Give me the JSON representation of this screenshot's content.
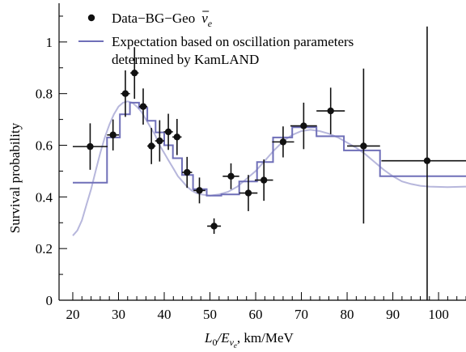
{
  "chart_data": {
    "type": "scatter",
    "xlabel_main": "L",
    "xlabel_sub0": "0",
    "xlabel_slash": "/E",
    "xlabel_sub_nu": "ν",
    "xlabel_sub_e": "e",
    "xlabel_rest": ", km/MeV",
    "ylabel": "Survival probability",
    "xlim": [
      17,
      106
    ],
    "ylim": [
      0,
      1.15
    ],
    "x_ticks": [
      20,
      30,
      40,
      50,
      60,
      70,
      80,
      90,
      100
    ],
    "x_tick_labels": [
      "20",
      "30",
      "40",
      "50",
      "60",
      "70",
      "80",
      "90",
      "100"
    ],
    "y_ticks": [
      0,
      0.2,
      0.4,
      0.6,
      0.8,
      1
    ],
    "y_tick_labels": [
      "0",
      "0.2",
      "0.4",
      "0.6",
      "0.8",
      "1"
    ],
    "legend": {
      "position": "top-left",
      "data_label_prefix": "Data−BG−Geo",
      "data_label_nu": "ν",
      "data_label_sub": "e",
      "expectation_line1": "Expectation based on oscillation parameters",
      "expectation_line2": "determined by KamLAND"
    },
    "colors": {
      "data": "#111111",
      "expectation": "#6f6fb8",
      "smooth": "#b7b7dc"
    },
    "data_points": [
      {
        "x": 23.8,
        "y": 0.595,
        "xerr_lo": 3.8,
        "xerr_hi": 3.8,
        "yerr_lo": 0.09,
        "yerr_hi": 0.09
      },
      {
        "x": 28.8,
        "y": 0.64,
        "xerr_lo": 1.3,
        "xerr_hi": 1.3,
        "yerr_lo": 0.06,
        "yerr_hi": 0.06
      },
      {
        "x": 31.5,
        "y": 0.8,
        "xerr_lo": 1.0,
        "xerr_hi": 1.0,
        "yerr_lo": 0.09,
        "yerr_hi": 0.09
      },
      {
        "x": 33.5,
        "y": 0.88,
        "xerr_lo": 0.9,
        "xerr_hi": 0.9,
        "yerr_lo": 0.1,
        "yerr_hi": 0.1
      },
      {
        "x": 35.4,
        "y": 0.75,
        "xerr_lo": 0.9,
        "xerr_hi": 0.9,
        "yerr_lo": 0.07,
        "yerr_hi": 0.07
      },
      {
        "x": 37.2,
        "y": 0.597,
        "xerr_lo": 0.9,
        "xerr_hi": 0.9,
        "yerr_lo": 0.07,
        "yerr_hi": 0.07
      },
      {
        "x": 39.0,
        "y": 0.617,
        "xerr_lo": 1.0,
        "xerr_hi": 1.0,
        "yerr_lo": 0.08,
        "yerr_hi": 0.08
      },
      {
        "x": 40.9,
        "y": 0.652,
        "xerr_lo": 1.0,
        "xerr_hi": 1.0,
        "yerr_lo": 0.07,
        "yerr_hi": 0.07
      },
      {
        "x": 42.8,
        "y": 0.632,
        "xerr_lo": 1.0,
        "xerr_hi": 1.0,
        "yerr_lo": 0.07,
        "yerr_hi": 0.07
      },
      {
        "x": 45.0,
        "y": 0.495,
        "xerr_lo": 1.1,
        "xerr_hi": 1.1,
        "yerr_lo": 0.06,
        "yerr_hi": 0.06
      },
      {
        "x": 47.7,
        "y": 0.425,
        "xerr_lo": 1.3,
        "xerr_hi": 1.3,
        "yerr_lo": 0.05,
        "yerr_hi": 0.05
      },
      {
        "x": 50.9,
        "y": 0.287,
        "xerr_lo": 1.5,
        "xerr_hi": 1.5,
        "yerr_lo": 0.03,
        "yerr_hi": 0.03
      },
      {
        "x": 54.6,
        "y": 0.48,
        "xerr_lo": 1.8,
        "xerr_hi": 1.8,
        "yerr_lo": 0.05,
        "yerr_hi": 0.05
      },
      {
        "x": 58.4,
        "y": 0.415,
        "xerr_lo": 2.0,
        "xerr_hi": 2.0,
        "yerr_lo": 0.07,
        "yerr_hi": 0.07
      },
      {
        "x": 61.8,
        "y": 0.465,
        "xerr_lo": 2.0,
        "xerr_hi": 2.0,
        "yerr_lo": 0.08,
        "yerr_hi": 0.08
      },
      {
        "x": 66.0,
        "y": 0.613,
        "xerr_lo": 2.4,
        "xerr_hi": 2.4,
        "yerr_lo": 0.06,
        "yerr_hi": 0.06
      },
      {
        "x": 70.5,
        "y": 0.675,
        "xerr_lo": 2.9,
        "xerr_hi": 2.9,
        "yerr_lo": 0.09,
        "yerr_hi": 0.09
      },
      {
        "x": 76.4,
        "y": 0.733,
        "xerr_lo": 3.1,
        "xerr_hi": 3.1,
        "yerr_lo": 0.09,
        "yerr_hi": 0.09
      },
      {
        "x": 83.6,
        "y": 0.597,
        "xerr_lo": 3.6,
        "xerr_hi": 3.6,
        "yerr_lo": 0.3,
        "yerr_hi": 0.3
      },
      {
        "x": 97.5,
        "y": 0.54,
        "xerr_lo": 10.0,
        "xerr_hi": 9.0,
        "yerr_lo": 0.54,
        "yerr_hi": 0.52
      }
    ],
    "expectation_histogram": [
      {
        "x0": 20,
        "x1": 27.5,
        "y": 0.455
      },
      {
        "x0": 27.5,
        "x1": 30.3,
        "y": 0.63
      },
      {
        "x0": 30.3,
        "x1": 32.5,
        "y": 0.72
      },
      {
        "x0": 32.5,
        "x1": 34.5,
        "y": 0.765
      },
      {
        "x0": 34.5,
        "x1": 36.3,
        "y": 0.745
      },
      {
        "x0": 36.3,
        "x1": 38.1,
        "y": 0.695
      },
      {
        "x0": 38.1,
        "x1": 40.0,
        "y": 0.65
      },
      {
        "x0": 40.0,
        "x1": 41.9,
        "y": 0.6
      },
      {
        "x0": 41.9,
        "x1": 43.9,
        "y": 0.55
      },
      {
        "x0": 43.9,
        "x1": 46.3,
        "y": 0.485
      },
      {
        "x0": 46.3,
        "x1": 49.3,
        "y": 0.43
      },
      {
        "x0": 49.3,
        "x1": 52.5,
        "y": 0.405
      },
      {
        "x0": 52.5,
        "x1": 56.4,
        "y": 0.41
      },
      {
        "x0": 56.4,
        "x1": 60.3,
        "y": 0.46
      },
      {
        "x0": 60.3,
        "x1": 63.8,
        "y": 0.535
      },
      {
        "x0": 63.8,
        "x1": 68.0,
        "y": 0.63
      },
      {
        "x0": 68.0,
        "x1": 73.3,
        "y": 0.67
      },
      {
        "x0": 73.3,
        "x1": 79.3,
        "y": 0.635
      },
      {
        "x0": 79.3,
        "x1": 87.2,
        "y": 0.58
      },
      {
        "x0": 87.2,
        "x1": 106,
        "y": 0.48
      }
    ],
    "expectation_smooth": [
      [
        20,
        0.25
      ],
      [
        21,
        0.27
      ],
      [
        22,
        0.31
      ],
      [
        23,
        0.37
      ],
      [
        24,
        0.43
      ],
      [
        25,
        0.5
      ],
      [
        26,
        0.57
      ],
      [
        27,
        0.63
      ],
      [
        28,
        0.68
      ],
      [
        29,
        0.72
      ],
      [
        30,
        0.75
      ],
      [
        31,
        0.765
      ],
      [
        32,
        0.77
      ],
      [
        33,
        0.765
      ],
      [
        34,
        0.75
      ],
      [
        35,
        0.73
      ],
      [
        36,
        0.7
      ],
      [
        37,
        0.67
      ],
      [
        38,
        0.64
      ],
      [
        39,
        0.6
      ],
      [
        40,
        0.57
      ],
      [
        41,
        0.54
      ],
      [
        42,
        0.51
      ],
      [
        43,
        0.48
      ],
      [
        44,
        0.46
      ],
      [
        45,
        0.44
      ],
      [
        46,
        0.425
      ],
      [
        47,
        0.415
      ],
      [
        48,
        0.41
      ],
      [
        50,
        0.405
      ],
      [
        52,
        0.41
      ],
      [
        54,
        0.42
      ],
      [
        56,
        0.44
      ],
      [
        58,
        0.47
      ],
      [
        60,
        0.5
      ],
      [
        62,
        0.54
      ],
      [
        64,
        0.58
      ],
      [
        66,
        0.615
      ],
      [
        68,
        0.64
      ],
      [
        70,
        0.655
      ],
      [
        72,
        0.66
      ],
      [
        74,
        0.655
      ],
      [
        76,
        0.645
      ],
      [
        78,
        0.63
      ],
      [
        80,
        0.61
      ],
      [
        82,
        0.59
      ],
      [
        84,
        0.565
      ],
      [
        86,
        0.535
      ],
      [
        88,
        0.505
      ],
      [
        90,
        0.48
      ],
      [
        92,
        0.46
      ],
      [
        94,
        0.45
      ],
      [
        96,
        0.443
      ],
      [
        98,
        0.44
      ],
      [
        102,
        0.438
      ],
      [
        106,
        0.44
      ]
    ]
  }
}
